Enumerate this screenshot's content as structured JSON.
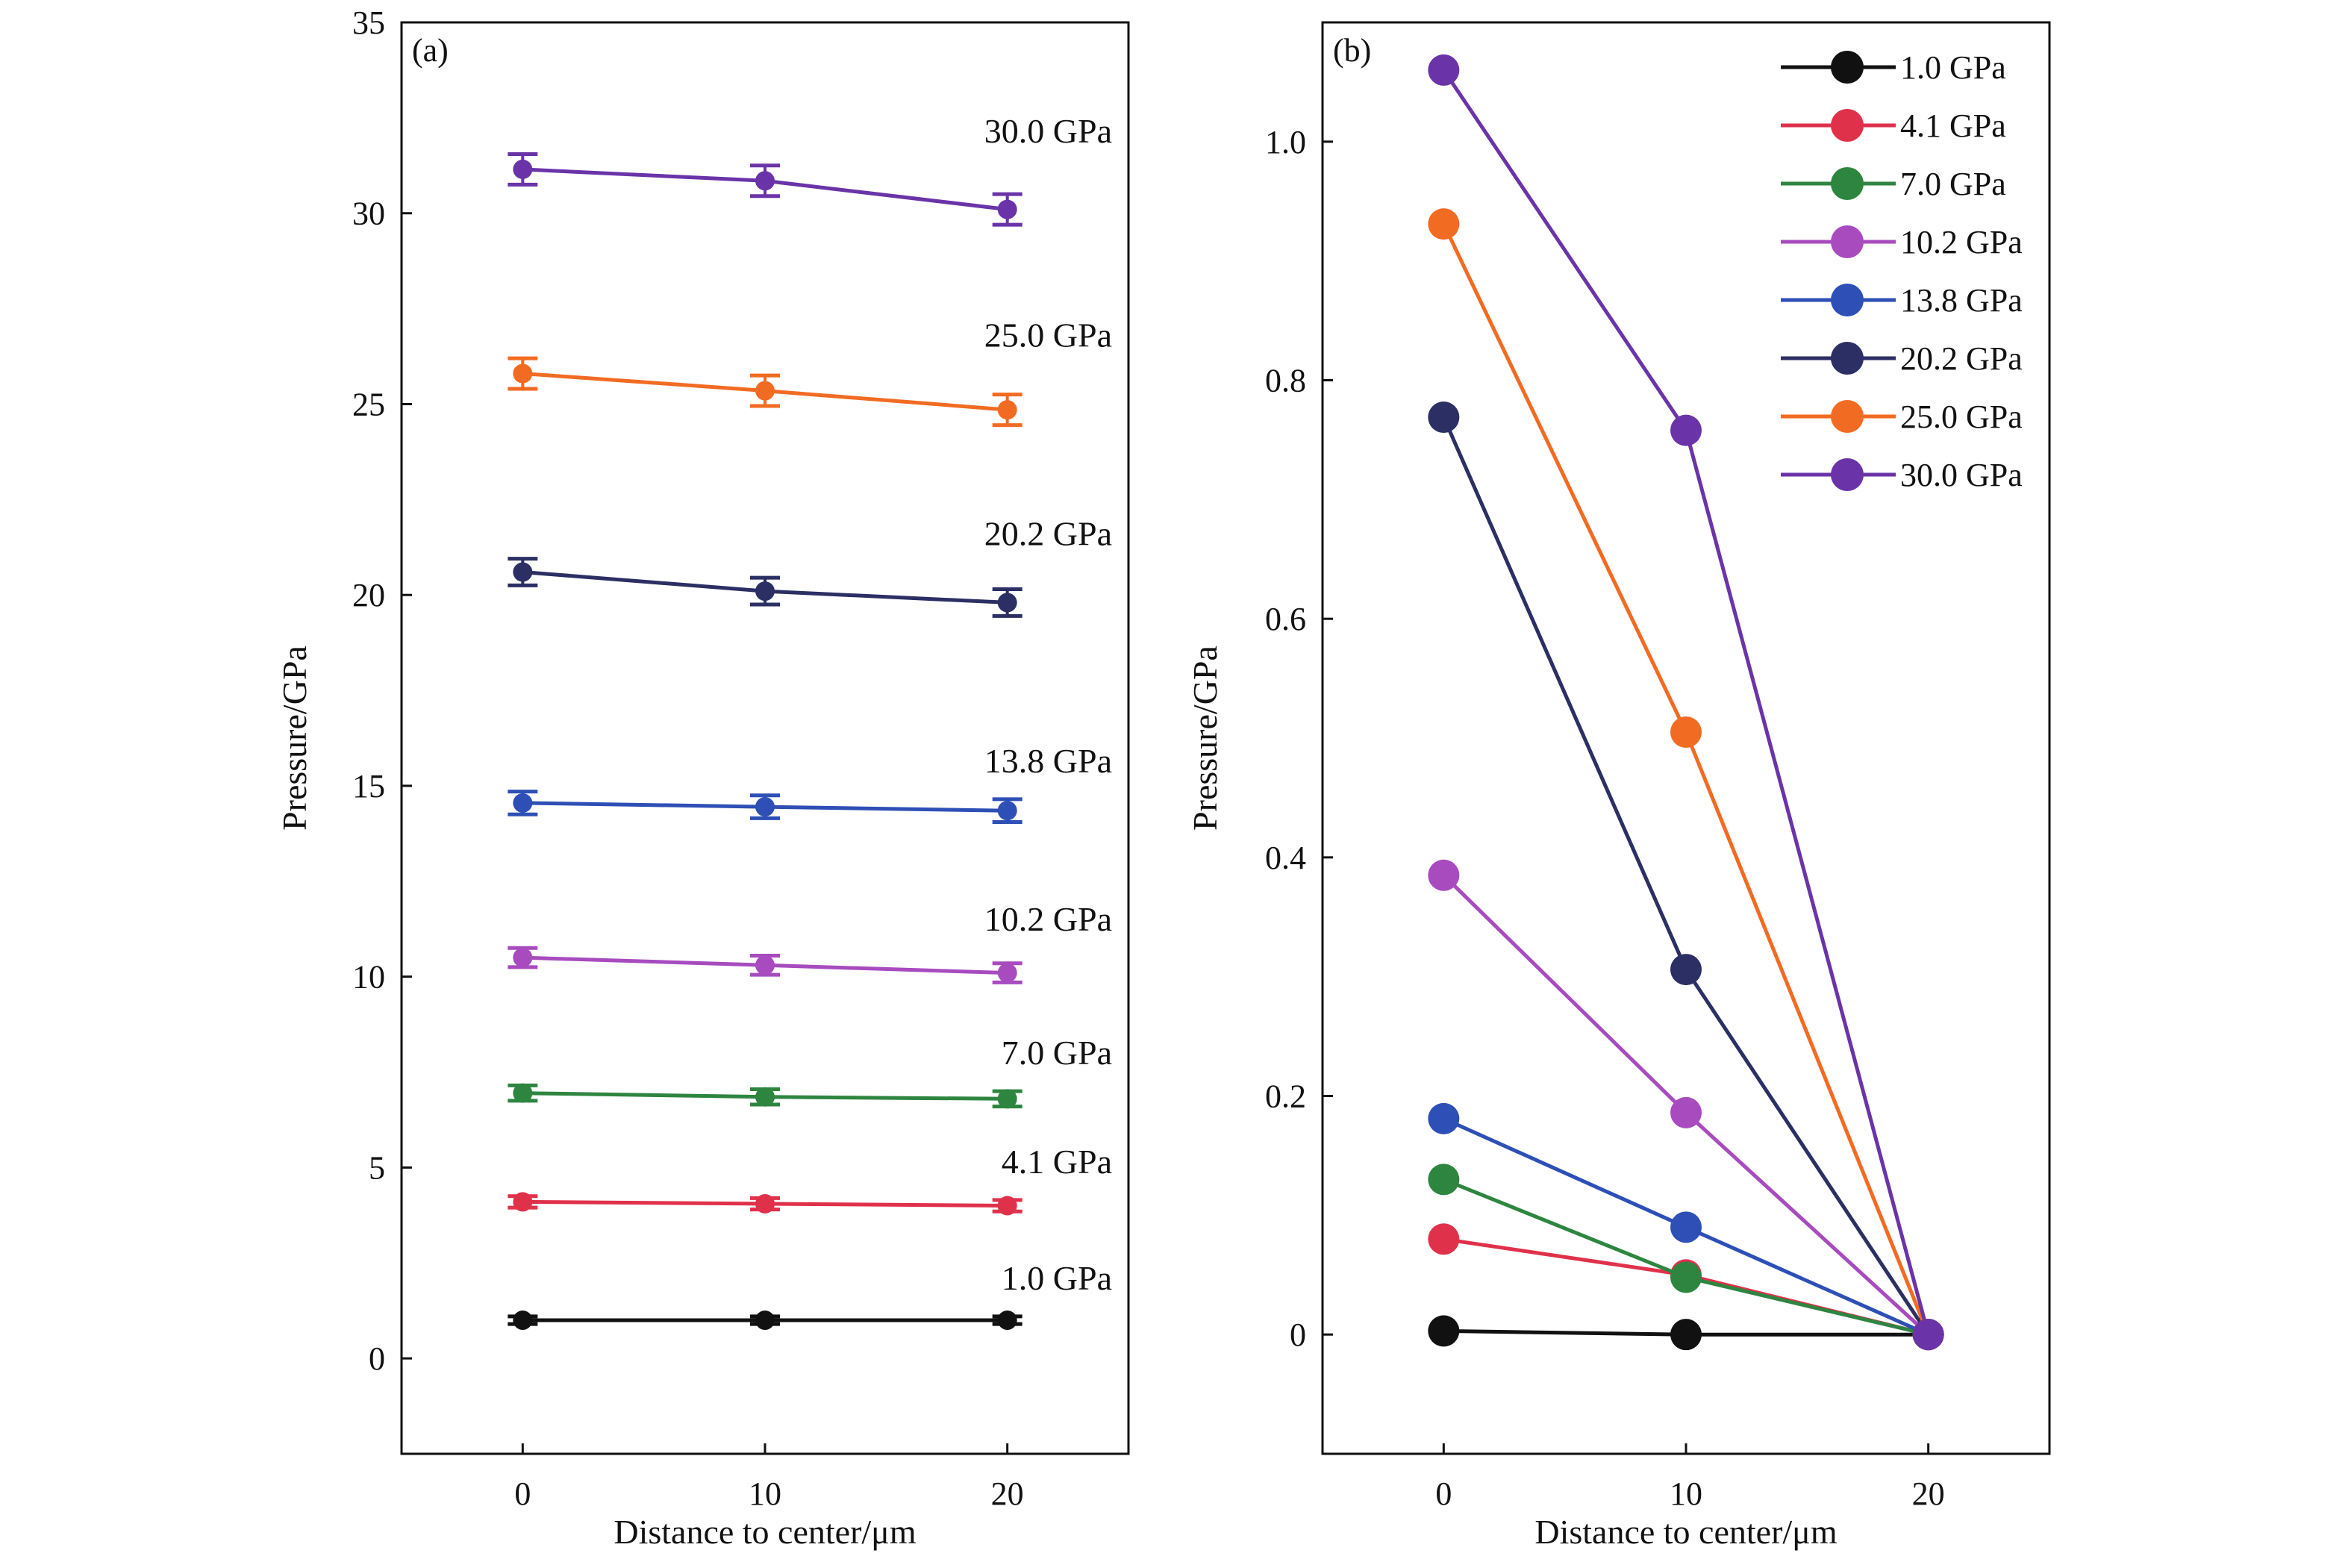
{
  "chart_data": [
    {
      "panel_label": "(a)",
      "type": "line",
      "xlabel": "Distance to center/μm",
      "ylabel": "Pressure/GPa",
      "xlim": [
        -5,
        25
      ],
      "ylim": [
        -2.5,
        35
      ],
      "xticks": [
        0,
        10,
        20
      ],
      "yticks": [
        0,
        5,
        10,
        15,
        20,
        25,
        30,
        35
      ],
      "x": [
        0,
        10,
        20
      ],
      "error_bars": true,
      "series": [
        {
          "name": "1.0 GPa",
          "color": "#111111",
          "values": [
            1.0,
            1.0,
            1.0
          ],
          "errors": [
            0.1,
            0.1,
            0.1
          ]
        },
        {
          "name": "4.1 GPa",
          "color": "#e0314b",
          "values": [
            4.1,
            4.05,
            4.0
          ],
          "errors": [
            0.15,
            0.15,
            0.15
          ]
        },
        {
          "name": "7.0 GPa",
          "color": "#2e8540",
          "values": [
            6.95,
            6.85,
            6.8
          ],
          "errors": [
            0.2,
            0.2,
            0.2
          ]
        },
        {
          "name": "10.2 GPa",
          "color": "#a74bbf",
          "values": [
            10.5,
            10.3,
            10.1
          ],
          "errors": [
            0.25,
            0.25,
            0.25
          ]
        },
        {
          "name": "13.8 GPa",
          "color": "#2e4fb5",
          "values": [
            14.55,
            14.45,
            14.35
          ],
          "errors": [
            0.3,
            0.3,
            0.3
          ]
        },
        {
          "name": "20.2 GPa",
          "color": "#2b2f63",
          "values": [
            20.6,
            20.1,
            19.8
          ],
          "errors": [
            0.35,
            0.35,
            0.35
          ]
        },
        {
          "name": "25.0 GPa",
          "color": "#f26b22",
          "values": [
            25.8,
            25.35,
            24.85
          ],
          "errors": [
            0.4,
            0.4,
            0.4
          ]
        },
        {
          "name": "30.0 GPa",
          "color": "#6a34a8",
          "values": [
            31.15,
            30.85,
            30.1
          ],
          "errors": [
            0.4,
            0.4,
            0.4
          ]
        }
      ]
    },
    {
      "panel_label": "(b)",
      "type": "line",
      "xlabel": "Distance to center/μm",
      "ylabel": "Pressure/GPa",
      "xlim": [
        -5,
        25
      ],
      "ylim": [
        -0.1,
        1.1
      ],
      "xticks": [
        0,
        10,
        20
      ],
      "yticks": [
        0,
        0.2,
        0.4,
        0.6,
        0.8,
        1.0
      ],
      "ytick_labels": [
        "0",
        "0.2",
        "0.4",
        "0.6",
        "0.8",
        "1.0"
      ],
      "x": [
        0,
        10,
        20
      ],
      "legend_position": "top-right",
      "series": [
        {
          "name": "1.0 GPa",
          "color": "#111111",
          "values": [
            0.003,
            0.0,
            0.0
          ]
        },
        {
          "name": "4.1 GPa",
          "color": "#e0314b",
          "values": [
            0.08,
            0.05,
            0.0
          ]
        },
        {
          "name": "7.0 GPa",
          "color": "#2e8540",
          "values": [
            0.13,
            0.048,
            0.0
          ]
        },
        {
          "name": "10.2 GPa",
          "color": "#a74bbf",
          "values": [
            0.385,
            0.186,
            0.0
          ]
        },
        {
          "name": "13.8 GPa",
          "color": "#2e4fb5",
          "values": [
            0.181,
            0.09,
            0.0
          ]
        },
        {
          "name": "20.2 GPa",
          "color": "#2b2f63",
          "values": [
            0.769,
            0.306,
            0.0
          ]
        },
        {
          "name": "25.0 GPa",
          "color": "#f26b22",
          "values": [
            0.931,
            0.505,
            0.0
          ]
        },
        {
          "name": "30.0 GPa",
          "color": "#6a34a8",
          "values": [
            1.06,
            0.758,
            0.0
          ]
        }
      ]
    }
  ]
}
